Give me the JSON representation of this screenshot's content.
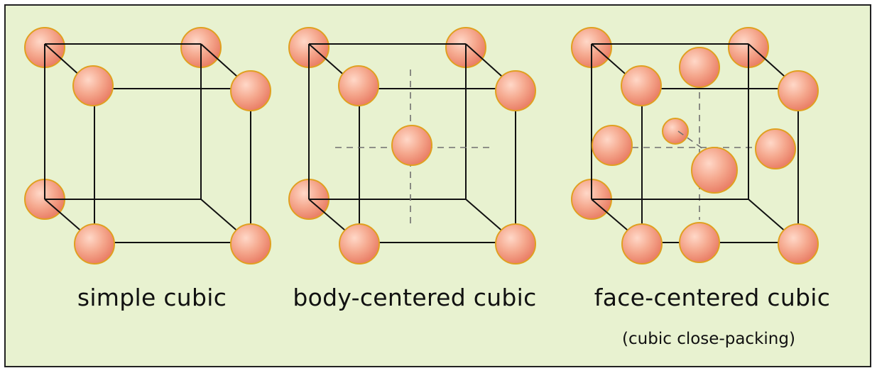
{
  "structures": [
    {
      "id": "simple",
      "label": "simple cubic"
    },
    {
      "id": "bcc",
      "label": "body-centered cubic"
    },
    {
      "id": "fcc",
      "label": "face-centered cubic",
      "sublabel": "(cubic close-packing)"
    }
  ],
  "colors": {
    "background": "#e8f2d0",
    "border": "#222222",
    "atom_fill": "#f29a80",
    "atom_highlight": "#ffd8c8",
    "atom_stroke": "#e0a020",
    "edge": "#111111",
    "dashed": "#707070"
  }
}
